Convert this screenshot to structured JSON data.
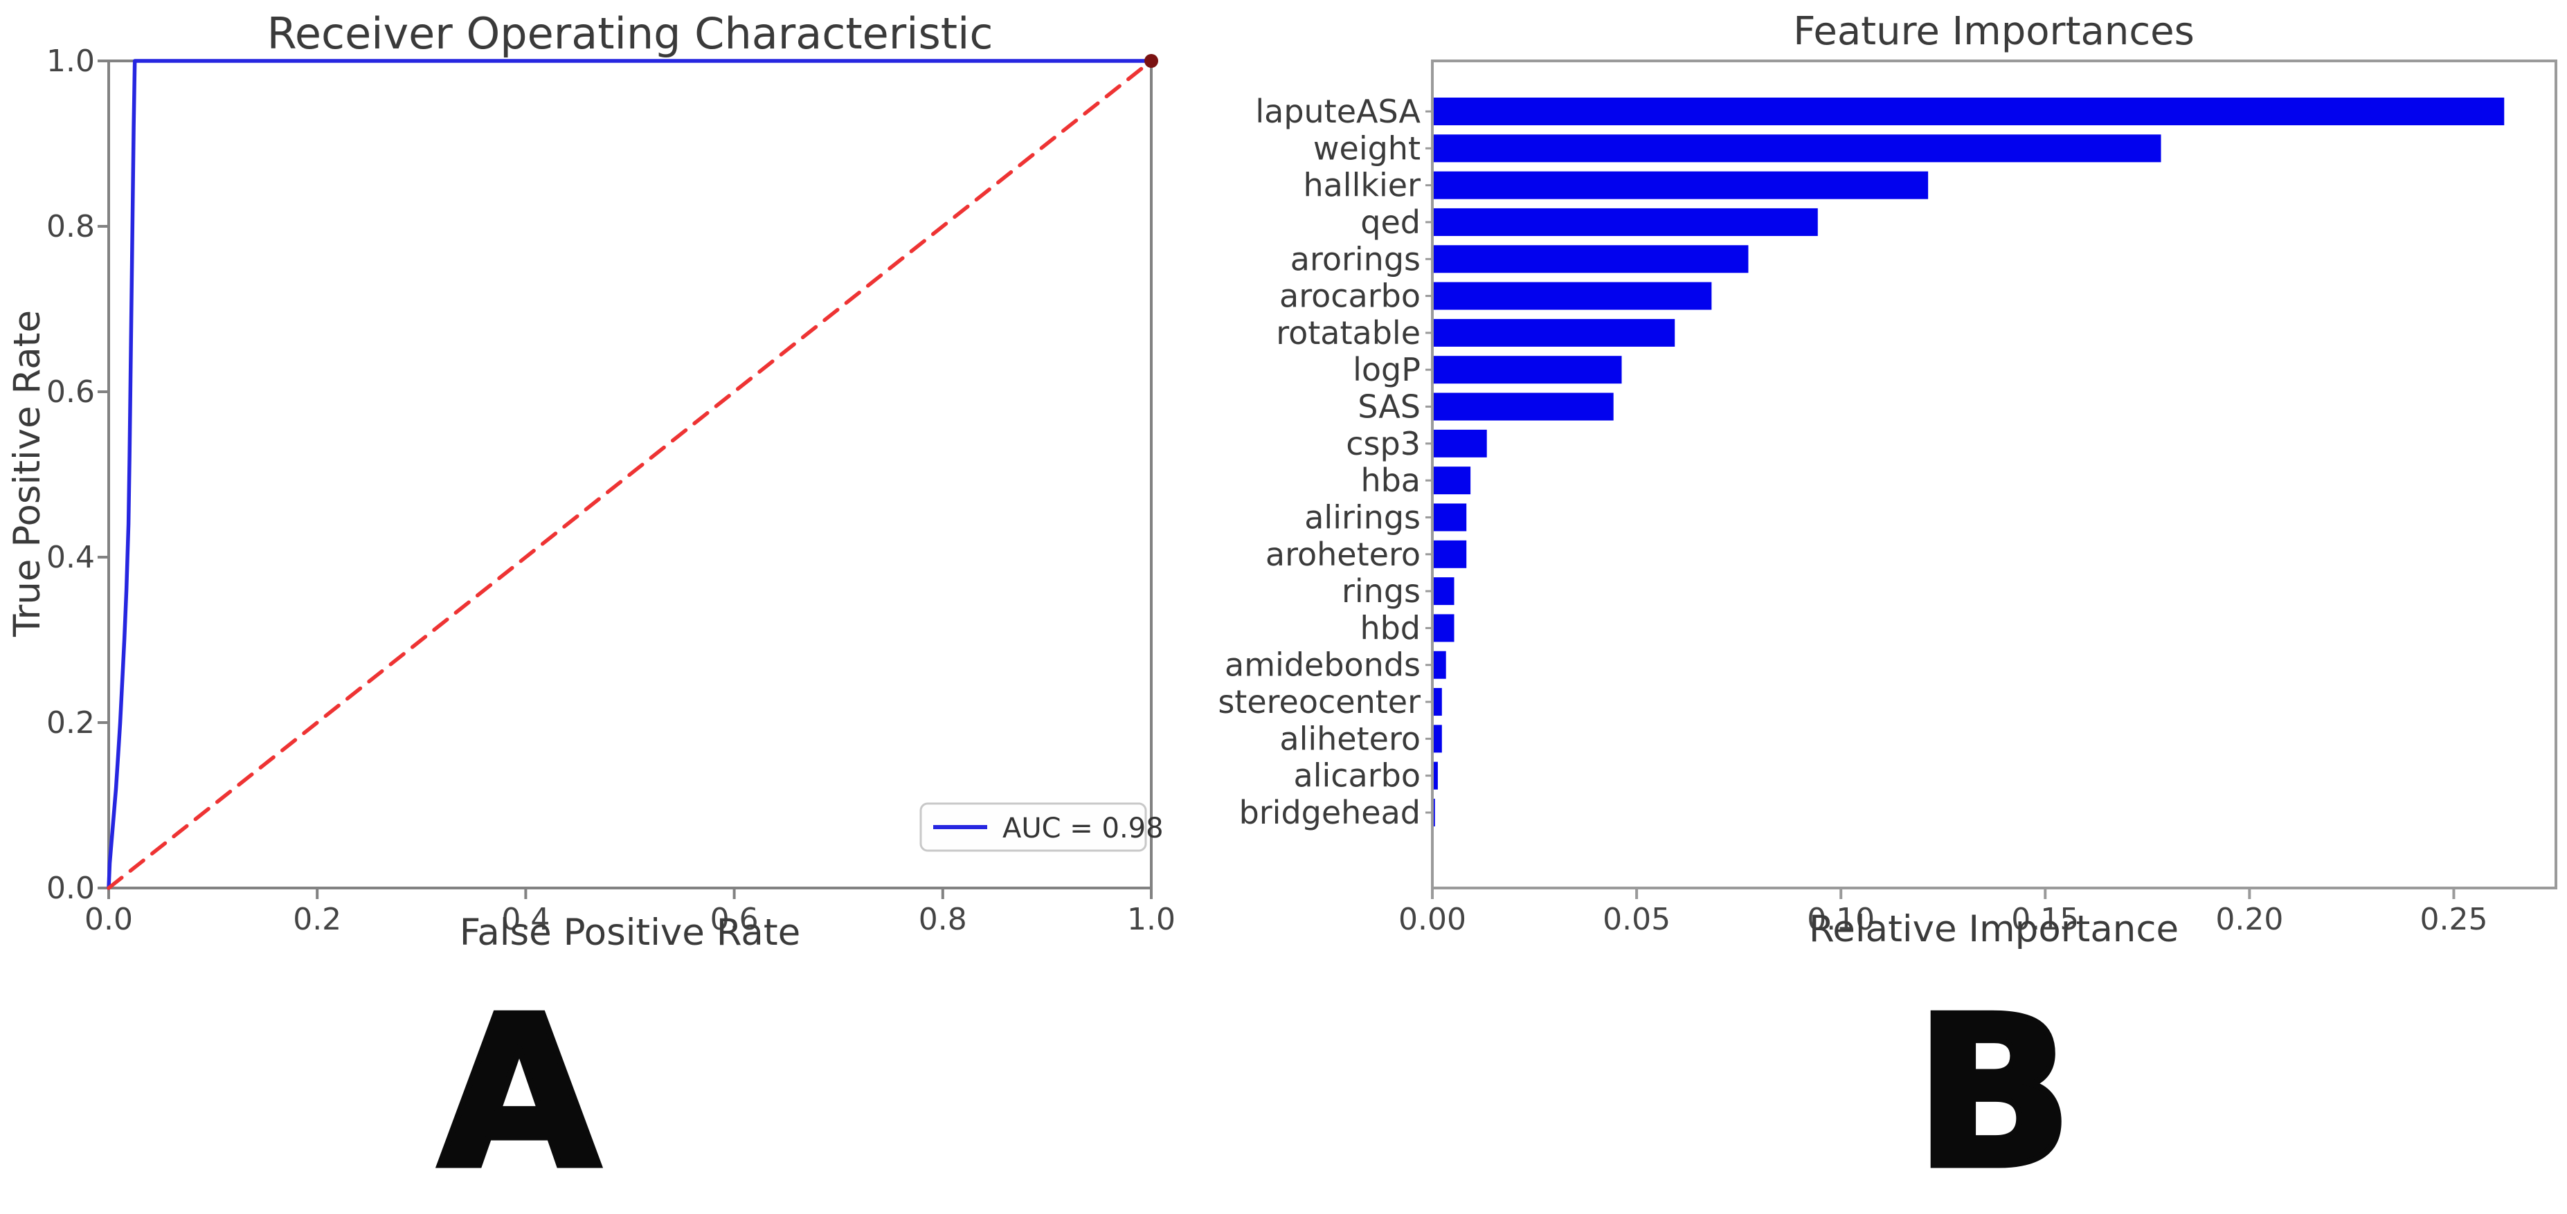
{
  "figure": {
    "panel_a_label": "A",
    "panel_b_label": "B"
  },
  "chart_data": [
    {
      "id": "roc",
      "type": "line",
      "title": "Receiver Operating Characteristic",
      "xlabel": "False Positive Rate",
      "ylabel": "True Positive Rate",
      "xlim": [
        0.0,
        1.0
      ],
      "ylim": [
        0.0,
        1.0
      ],
      "xticks": [
        "0.0",
        "0.2",
        "0.4",
        "0.6",
        "0.8",
        "1.0"
      ],
      "yticks": [
        "0.0",
        "0.2",
        "0.4",
        "0.6",
        "0.8",
        "1.0"
      ],
      "grid": false,
      "legend": {
        "label": "AUC = 0.98",
        "position": "lower right"
      },
      "series": [
        {
          "name": "roc-curve",
          "color": "#2626e0",
          "style": "solid",
          "x": [
            0,
            0.001,
            0.003,
            0.005,
            0.007,
            0.009,
            0.011,
            0.013,
            0.015,
            0.017,
            0.019,
            0.02,
            0.021,
            0.022,
            0.023,
            0.024,
            0.025,
            1.0
          ],
          "y": [
            0,
            0.03,
            0.06,
            0.09,
            0.12,
            0.16,
            0.2,
            0.25,
            0.3,
            0.36,
            0.44,
            0.52,
            0.62,
            0.72,
            0.82,
            0.92,
            1.0,
            1.0
          ]
        },
        {
          "name": "chance-diagonal",
          "color": "#ee3333",
          "style": "dashed",
          "x": [
            0,
            1.0
          ],
          "y": [
            0,
            1.0
          ]
        }
      ],
      "endpoint_marker": {
        "x": 1.0,
        "y": 1.0,
        "color": "#7a1212"
      }
    },
    {
      "id": "feature_importances",
      "type": "bar",
      "orientation": "horizontal",
      "title": "Feature Importances",
      "xlabel": "Relative Importance",
      "xlim": [
        0.0,
        0.275
      ],
      "xticks": [
        "0.00",
        "0.05",
        "0.10",
        "0.15",
        "0.20",
        "0.25"
      ],
      "grid": false,
      "bar_color": "#0202ee",
      "categories": [
        "laputeASA",
        "weight",
        "hallkier",
        "qed",
        "arorings",
        "arocarbo",
        "rotatable",
        "logP",
        "SAS",
        "csp3",
        "hba",
        "alirings",
        "arohetero",
        "rings",
        "hbd",
        "amidebonds",
        "stereocenter",
        "alihetero",
        "alicarbo",
        "bridgehead"
      ],
      "values": [
        0.262,
        0.178,
        0.121,
        0.094,
        0.077,
        0.068,
        0.059,
        0.046,
        0.044,
        0.013,
        0.009,
        0.008,
        0.008,
        0.005,
        0.005,
        0.003,
        0.002,
        0.002,
        0.001,
        0.0003
      ]
    }
  ]
}
